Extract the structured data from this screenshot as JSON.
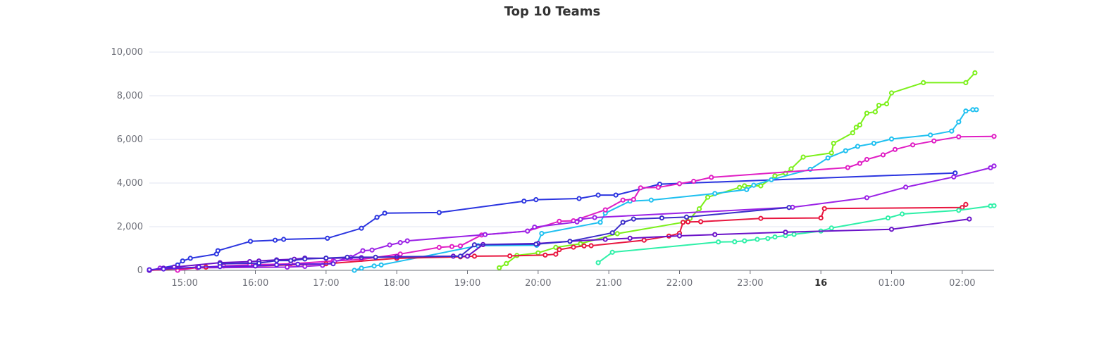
{
  "chart_data": {
    "type": "line",
    "title": "Top 10 Teams",
    "ylim": [
      0,
      10000
    ],
    "y_ticks": [
      {
        "value": 0,
        "label": "0"
      },
      {
        "value": 2000,
        "label": "2,000"
      },
      {
        "value": 4000,
        "label": "4,000"
      },
      {
        "value": 6000,
        "label": "6,000"
      },
      {
        "value": 8000,
        "label": "8,000"
      },
      {
        "value": 10000,
        "label": "10,000"
      }
    ],
    "x_unit": "hours (elapsed on the time axis)",
    "xlim": [
      14.5,
      26.45
    ],
    "x_ticks": [
      {
        "value": 15,
        "label": "15:00"
      },
      {
        "value": 16,
        "label": "16:00"
      },
      {
        "value": 17,
        "label": "17:00"
      },
      {
        "value": 18,
        "label": "18:00"
      },
      {
        "value": 19,
        "label": "19:00"
      },
      {
        "value": 20,
        "label": "20:00"
      },
      {
        "value": 21,
        "label": "21:00"
      },
      {
        "value": 22,
        "label": "22:00"
      },
      {
        "value": 23,
        "label": "23:00"
      },
      {
        "value": 24,
        "label": "16",
        "bold": true
      },
      {
        "value": 25,
        "label": "01:00"
      },
      {
        "value": 26,
        "label": "02:00"
      }
    ],
    "grid": true,
    "legend": "none",
    "series": [
      {
        "color": "#2b35e0",
        "points": [
          [
            14.5,
            0
          ],
          [
            14.9,
            250
          ],
          [
            14.97,
            430
          ],
          [
            15.08,
            550
          ],
          [
            15.45,
            750
          ],
          [
            15.47,
            900
          ],
          [
            15.93,
            1330
          ],
          [
            16.28,
            1380
          ],
          [
            16.4,
            1420
          ],
          [
            17.02,
            1470
          ],
          [
            17.5,
            1930
          ],
          [
            17.72,
            2430
          ],
          [
            17.83,
            2620
          ],
          [
            18.6,
            2650
          ],
          [
            19.8,
            3170
          ],
          [
            19.97,
            3240
          ],
          [
            20.58,
            3290
          ],
          [
            20.85,
            3450
          ],
          [
            21.1,
            3450
          ],
          [
            21.72,
            3950
          ],
          [
            25.9,
            4460
          ]
        ]
      },
      {
        "color": "#7cf01a",
        "points": [
          [
            19.45,
            120
          ],
          [
            19.55,
            310
          ],
          [
            19.7,
            680
          ],
          [
            20.0,
            800
          ],
          [
            20.25,
            1050
          ],
          [
            20.6,
            1220
          ],
          [
            21.12,
            1680
          ],
          [
            22.05,
            2200
          ],
          [
            22.15,
            2380
          ],
          [
            22.28,
            2820
          ],
          [
            22.4,
            3350
          ],
          [
            22.85,
            3800
          ],
          [
            22.92,
            3870
          ],
          [
            23.15,
            3870
          ],
          [
            23.35,
            4330
          ],
          [
            23.5,
            4450
          ],
          [
            23.58,
            4650
          ],
          [
            23.75,
            5190
          ],
          [
            24.15,
            5380
          ],
          [
            24.18,
            5820
          ],
          [
            24.45,
            6300
          ],
          [
            24.5,
            6550
          ],
          [
            24.55,
            6660
          ],
          [
            24.65,
            7200
          ],
          [
            24.77,
            7260
          ],
          [
            24.82,
            7560
          ],
          [
            24.93,
            7630
          ],
          [
            25.0,
            8130
          ],
          [
            25.45,
            8600
          ],
          [
            26.05,
            8600
          ],
          [
            26.18,
            9050
          ]
        ]
      },
      {
        "color": "#1fc0f0",
        "points": [
          [
            17.4,
            0
          ],
          [
            17.5,
            100
          ],
          [
            17.68,
            200
          ],
          [
            17.78,
            250
          ],
          [
            19.15,
            1130
          ],
          [
            19.98,
            1150
          ],
          [
            20.05,
            1690
          ],
          [
            20.88,
            2200
          ],
          [
            20.95,
            2620
          ],
          [
            21.3,
            3170
          ],
          [
            21.6,
            3220
          ],
          [
            22.5,
            3520
          ],
          [
            22.95,
            3700
          ],
          [
            23.05,
            3900
          ],
          [
            23.3,
            4150
          ],
          [
            23.85,
            4630
          ],
          [
            24.1,
            5150
          ],
          [
            24.35,
            5480
          ],
          [
            24.52,
            5680
          ],
          [
            24.75,
            5820
          ],
          [
            25.0,
            6020
          ],
          [
            25.55,
            6200
          ],
          [
            25.85,
            6380
          ],
          [
            25.95,
            6800
          ],
          [
            26.05,
            7300
          ],
          [
            26.15,
            7360
          ],
          [
            26.2,
            7360
          ]
        ]
      },
      {
        "color": "#e01ec4",
        "points": [
          [
            14.9,
            0
          ],
          [
            15.18,
            130
          ],
          [
            15.55,
            200
          ],
          [
            15.92,
            250
          ],
          [
            16.5,
            300
          ],
          [
            17.1,
            430
          ],
          [
            17.5,
            500
          ],
          [
            18.05,
            750
          ],
          [
            18.6,
            1050
          ],
          [
            18.78,
            1090
          ],
          [
            18.9,
            1120
          ],
          [
            19.2,
            1620
          ],
          [
            19.85,
            1800
          ],
          [
            20.3,
            2250
          ],
          [
            20.5,
            2270
          ],
          [
            20.95,
            2770
          ],
          [
            21.2,
            3220
          ],
          [
            21.35,
            3250
          ],
          [
            21.45,
            3780
          ],
          [
            21.7,
            3800
          ],
          [
            22.0,
            3970
          ],
          [
            22.2,
            4080
          ],
          [
            22.45,
            4260
          ],
          [
            24.38,
            4710
          ],
          [
            24.55,
            4900
          ],
          [
            24.65,
            5080
          ],
          [
            24.88,
            5290
          ],
          [
            25.05,
            5540
          ],
          [
            25.3,
            5750
          ],
          [
            25.6,
            5930
          ],
          [
            25.95,
            6120
          ],
          [
            26.45,
            6140
          ]
        ]
      },
      {
        "color": "#9b22e6",
        "points": [
          [
            14.65,
            100
          ],
          [
            16.45,
            150
          ],
          [
            16.7,
            180
          ],
          [
            16.95,
            230
          ],
          [
            17.12,
            400
          ],
          [
            17.35,
            600
          ],
          [
            17.52,
            900
          ],
          [
            17.65,
            930
          ],
          [
            17.9,
            1160
          ],
          [
            18.05,
            1270
          ],
          [
            18.15,
            1350
          ],
          [
            19.25,
            1640
          ],
          [
            19.85,
            1800
          ],
          [
            19.95,
            1980
          ],
          [
            20.55,
            2220
          ],
          [
            20.6,
            2340
          ],
          [
            20.8,
            2420
          ],
          [
            23.6,
            2890
          ],
          [
            24.65,
            3330
          ],
          [
            25.2,
            3810
          ],
          [
            25.88,
            4280
          ],
          [
            26.4,
            4700
          ],
          [
            26.45,
            4780
          ]
        ]
      },
      {
        "color": "#e8163f",
        "points": [
          [
            14.5,
            0
          ],
          [
            15.3,
            150
          ],
          [
            16.0,
            200
          ],
          [
            17.0,
            300
          ],
          [
            18.0,
            550
          ],
          [
            18.9,
            620
          ],
          [
            19.1,
            650
          ],
          [
            19.6,
            660
          ],
          [
            20.1,
            700
          ],
          [
            20.25,
            740
          ],
          [
            20.3,
            950
          ],
          [
            20.5,
            1060
          ],
          [
            20.65,
            1120
          ],
          [
            20.75,
            1130
          ],
          [
            21.5,
            1380
          ],
          [
            21.85,
            1570
          ],
          [
            22.0,
            1700
          ],
          [
            22.05,
            2200
          ],
          [
            22.12,
            2220
          ],
          [
            22.3,
            2230
          ],
          [
            23.15,
            2380
          ],
          [
            24.0,
            2400
          ],
          [
            24.05,
            2830
          ],
          [
            26.0,
            2880
          ],
          [
            26.05,
            3020
          ]
        ]
      },
      {
        "color": "#2ef0a8",
        "points": [
          [
            20.85,
            350
          ],
          [
            21.05,
            830
          ],
          [
            22.55,
            1300
          ],
          [
            22.78,
            1310
          ],
          [
            22.92,
            1350
          ],
          [
            23.1,
            1420
          ],
          [
            23.25,
            1460
          ],
          [
            23.35,
            1530
          ],
          [
            23.5,
            1590
          ],
          [
            23.62,
            1650
          ],
          [
            24.0,
            1800
          ],
          [
            24.15,
            1940
          ],
          [
            24.95,
            2400
          ],
          [
            25.15,
            2580
          ],
          [
            25.95,
            2750
          ],
          [
            26.4,
            2950
          ],
          [
            26.45,
            2960
          ]
        ]
      },
      {
        "color": "#6a12c8",
        "points": [
          [
            14.5,
            0
          ],
          [
            14.7,
            100
          ],
          [
            14.85,
            150
          ],
          [
            15.5,
            350
          ],
          [
            15.92,
            400
          ],
          [
            16.05,
            430
          ],
          [
            16.3,
            480
          ],
          [
            16.55,
            510
          ],
          [
            16.7,
            560
          ],
          [
            17.0,
            550
          ],
          [
            17.5,
            580
          ],
          [
            18.0,
            620
          ],
          [
            18.8,
            650
          ],
          [
            19.0,
            650
          ],
          [
            19.22,
            1180
          ],
          [
            20.0,
            1230
          ],
          [
            20.45,
            1330
          ],
          [
            20.95,
            1420
          ],
          [
            21.3,
            1470
          ],
          [
            22.0,
            1580
          ],
          [
            22.5,
            1640
          ],
          [
            23.5,
            1750
          ],
          [
            25.0,
            1880
          ],
          [
            26.1,
            2350
          ]
        ]
      },
      {
        "color": "#3b2cc9",
        "points": [
          [
            15.5,
            300
          ],
          [
            16.05,
            330
          ],
          [
            16.3,
            450
          ],
          [
            16.5,
            450
          ],
          [
            16.7,
            520
          ],
          [
            17.0,
            560
          ],
          [
            17.3,
            600
          ],
          [
            17.7,
            600
          ],
          [
            18.9,
            650
          ],
          [
            19.1,
            1170
          ],
          [
            19.97,
            1200
          ],
          [
            20.45,
            1330
          ],
          [
            21.05,
            1720
          ],
          [
            21.2,
            2200
          ],
          [
            21.35,
            2350
          ],
          [
            21.75,
            2400
          ],
          [
            22.1,
            2440
          ],
          [
            23.55,
            2880
          ]
        ]
      },
      {
        "color": "#5a1fe0",
        "points": [
          [
            14.5,
            30
          ],
          [
            14.7,
            60
          ],
          [
            15.2,
            150
          ],
          [
            15.5,
            170
          ],
          [
            16.0,
            200
          ],
          [
            16.3,
            250
          ],
          [
            16.6,
            280
          ],
          [
            17.1,
            300
          ]
        ]
      }
    ]
  }
}
